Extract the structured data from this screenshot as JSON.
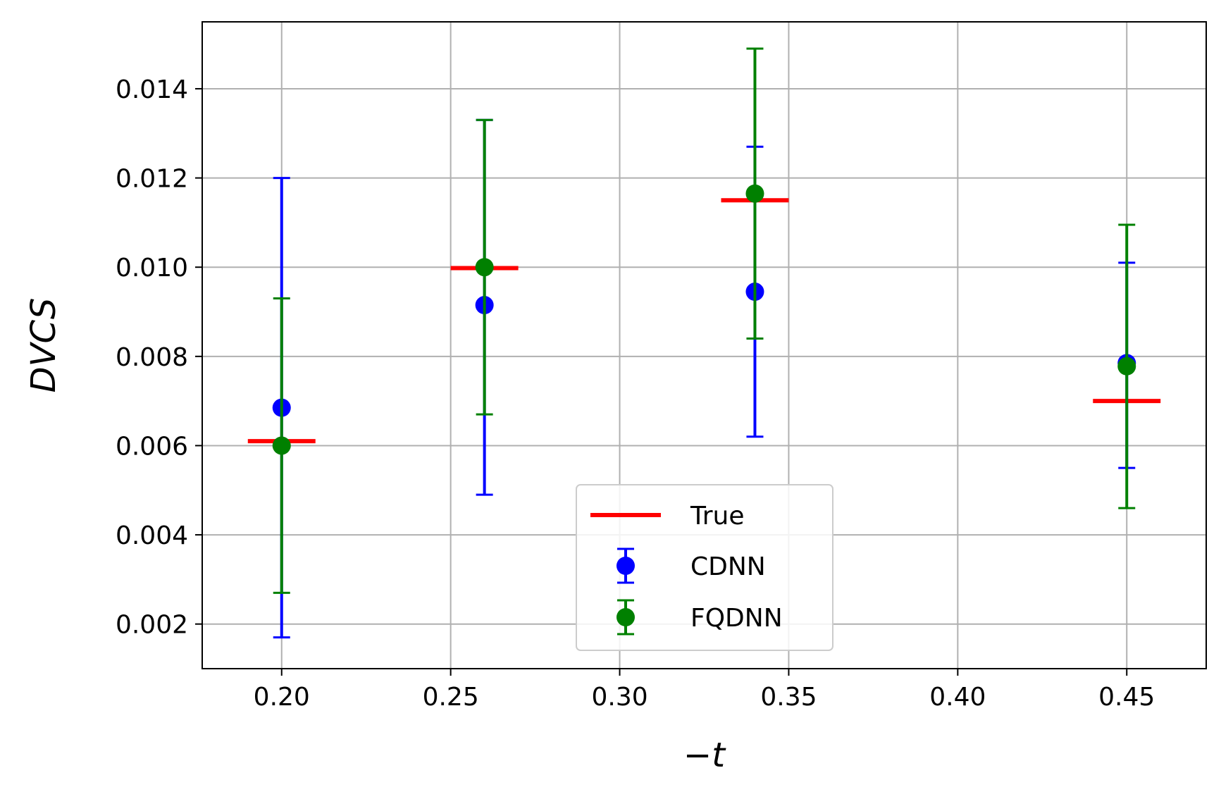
{
  "chart_data": {
    "type": "scatter",
    "xlabel": "−t",
    "ylabel": "DVCS",
    "xlim": [
      0.1765,
      0.4735
    ],
    "ylim": [
      0.001,
      0.0155
    ],
    "xticks": [
      "0.20",
      "0.25",
      "0.30",
      "0.35",
      "0.40",
      "0.45"
    ],
    "xtick_values": [
      0.2,
      0.25,
      0.3,
      0.35,
      0.4,
      0.45
    ],
    "yticks": [
      "0.002",
      "0.004",
      "0.006",
      "0.008",
      "0.010",
      "0.012",
      "0.014"
    ],
    "ytick_values": [
      0.002,
      0.004,
      0.006,
      0.008,
      0.01,
      0.012,
      0.014
    ],
    "grid": true,
    "legend_position": "bottom-center",
    "series": [
      {
        "name": "True",
        "kind": "line",
        "color": "#ff0000",
        "x": [
          0.2,
          0.26,
          0.34,
          0.45
        ],
        "y": [
          0.0061,
          0.00998,
          0.0115,
          0.007
        ],
        "half_width": 0.01
      },
      {
        "name": "CDNN",
        "kind": "errorbar",
        "color": "#0000ff",
        "x": [
          0.2,
          0.26,
          0.34,
          0.45
        ],
        "y": [
          0.00685,
          0.00915,
          0.00945,
          0.00785
        ],
        "yerr_low": [
          0.0017,
          0.0049,
          0.0062,
          0.0055
        ],
        "yerr_high": [
          0.012,
          0.0133,
          0.0127,
          0.0101
        ]
      },
      {
        "name": "FQDNN",
        "kind": "errorbar",
        "color": "#008000",
        "x": [
          0.2,
          0.26,
          0.34,
          0.45
        ],
        "y": [
          0.006,
          0.01,
          0.01165,
          0.00778
        ],
        "yerr_low": [
          0.0027,
          0.0067,
          0.0084,
          0.0046
        ],
        "yerr_high": [
          0.0093,
          0.0133,
          0.0149,
          0.01095
        ]
      }
    ]
  }
}
